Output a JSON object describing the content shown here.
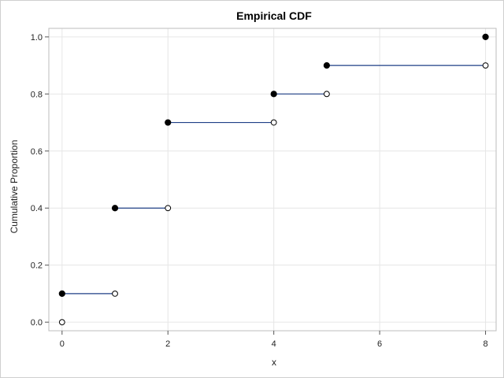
{
  "chart_data": {
    "type": "line",
    "title": "Empirical CDF",
    "xlabel": "x",
    "ylabel": "Cumulative Proportion",
    "xlim": [
      -0.25,
      8.2
    ],
    "ylim": [
      -0.03,
      1.03
    ],
    "x_ticks": [
      0,
      2,
      4,
      6,
      8
    ],
    "y_ticks": [
      0.0,
      0.2,
      0.4,
      0.6,
      0.8,
      1.0
    ],
    "y_tick_labels": [
      "0.0",
      "0.2",
      "0.4",
      "0.6",
      "0.8",
      "1.0"
    ],
    "grid": true,
    "steps": [
      {
        "x_start": 0,
        "x_end": 1,
        "y": 0.1
      },
      {
        "x_start": 1,
        "x_end": 2,
        "y": 0.4
      },
      {
        "x_start": 2,
        "x_end": 4,
        "y": 0.7
      },
      {
        "x_start": 4,
        "x_end": 5,
        "y": 0.8
      },
      {
        "x_start": 5,
        "x_end": 8,
        "y": 0.9
      }
    ],
    "closed_points": [
      {
        "x": 0,
        "y": 0.1
      },
      {
        "x": 1,
        "y": 0.4
      },
      {
        "x": 2,
        "y": 0.7
      },
      {
        "x": 4,
        "y": 0.8
      },
      {
        "x": 5,
        "y": 0.9
      },
      {
        "x": 8,
        "y": 1.0
      }
    ],
    "open_points": [
      {
        "x": 0,
        "y": 0.0
      },
      {
        "x": 1,
        "y": 0.1
      },
      {
        "x": 2,
        "y": 0.4
      },
      {
        "x": 4,
        "y": 0.7
      },
      {
        "x": 5,
        "y": 0.8
      },
      {
        "x": 8,
        "y": 0.9
      }
    ],
    "colors": {
      "step_line": "#1f3f86",
      "closed_marker": "#000000",
      "open_marker_fill": "#ffffff",
      "open_marker_stroke": "#000000",
      "grid": "#e6e6e6",
      "axis_frame": "#bdbdbd"
    }
  }
}
